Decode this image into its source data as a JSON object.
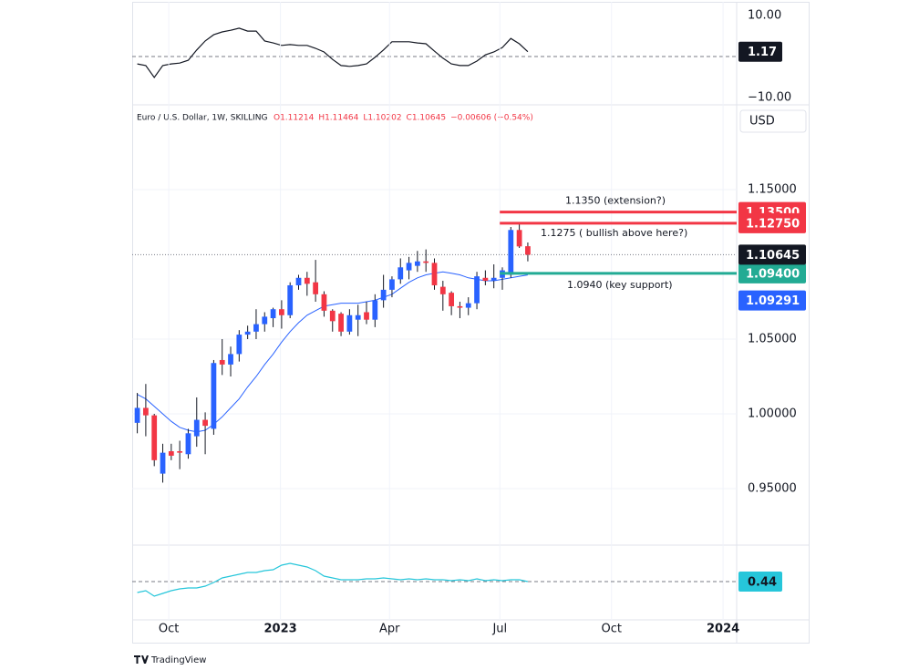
{
  "header": {
    "symbol": "Euro / U.S. Dollar, 1W, SKILLING",
    "ohlc": [
      "O1.11214",
      "H1.11464",
      "L1.10202",
      "C1.10645",
      "−0.00606 (−0.54%)"
    ],
    "currency": "USD"
  },
  "brand": "TradingView",
  "chart_data": [
    {
      "type": "line",
      "pane": "top",
      "color": "#131722",
      "values": [
        -1.8,
        -2.2,
        -5.1,
        -2.2,
        -1.8,
        -1.6,
        -0.9,
        1.6,
        3.8,
        5.3,
        6.0,
        6.4,
        6.9,
        6.2,
        6.2,
        3.8,
        3.3,
        2.7,
        2.9,
        2.7,
        2.7,
        2.0,
        1.1,
        -0.7,
        -2.2,
        -2.4,
        -2.2,
        -1.8,
        -0.2,
        1.6,
        3.6,
        3.6,
        3.6,
        3.3,
        3.1,
        1.3,
        -0.4,
        -1.8,
        -2.2,
        -2.2,
        -1.1,
        0.4,
        1.1,
        2.2,
        4.4,
        3.1,
        1.17
      ],
      "ylim": [
        -11.33,
        13.33
      ],
      "yticks": [
        {
          "value": 10,
          "label": "10.00"
        },
        {
          "value": -10,
          "label": "−10.00"
        }
      ],
      "reference": 0,
      "xlim": [
        -0.6,
        70.6
      ]
    },
    {
      "type": "candlestick",
      "pane": "main",
      "up_color": "#2962ff",
      "down_color": "#f23645",
      "categories": [
        null,
        null,
        null,
        null,
        null,
        null,
        null,
        null,
        null,
        null,
        null,
        null,
        null,
        null,
        null,
        null,
        null,
        null,
        null,
        null,
        null,
        null,
        null,
        null,
        null,
        null,
        null,
        null,
        null,
        null,
        null,
        null,
        null,
        null,
        null,
        null,
        null,
        null,
        null,
        null,
        null,
        null,
        null,
        null,
        null,
        null,
        null
      ],
      "open": [
        0.994,
        1.004,
        0.999,
        0.96,
        0.975,
        0.975,
        0.973,
        0.985,
        0.996,
        0.99,
        1.036,
        1.033,
        1.04,
        1.053,
        1.055,
        1.06,
        1.064,
        1.07,
        1.066,
        1.086,
        1.091,
        1.088,
        1.08,
        1.069,
        1.067,
        1.055,
        1.063,
        1.068,
        1.063,
        1.076,
        1.083,
        1.09,
        1.096,
        1.099,
        1.102,
        1.101,
        1.085,
        1.081,
        1.072,
        1.071,
        1.074,
        1.091,
        1.089,
        1.091,
        1.093,
        1.123,
        1.11214
      ],
      "high": [
        1.014,
        1.02,
        1.0,
        0.98,
        0.98,
        0.982,
        0.99,
        1.011,
        1.001,
        1.036,
        1.05,
        1.045,
        1.056,
        1.059,
        1.07,
        1.068,
        1.071,
        1.076,
        1.088,
        1.093,
        1.095,
        1.103,
        1.082,
        1.07,
        1.068,
        1.07,
        1.073,
        1.075,
        1.08,
        1.093,
        1.092,
        1.104,
        1.105,
        1.109,
        1.11,
        1.104,
        1.089,
        1.082,
        1.075,
        1.078,
        1.095,
        1.096,
        1.1,
        1.098,
        1.125,
        1.128,
        1.11464
      ],
      "low": [
        0.987,
        0.985,
        0.965,
        0.954,
        0.969,
        0.963,
        0.97,
        0.978,
        0.973,
        0.986,
        1.026,
        1.025,
        1.035,
        1.05,
        1.05,
        1.055,
        1.058,
        1.057,
        1.064,
        1.083,
        1.079,
        1.075,
        1.065,
        1.055,
        1.052,
        1.053,
        1.052,
        1.06,
        1.058,
        1.071,
        1.078,
        1.087,
        1.09,
        1.095,
        1.095,
        1.083,
        1.069,
        1.066,
        1.064,
        1.066,
        1.07,
        1.086,
        1.084,
        1.083,
        1.091,
        1.111,
        1.10202
      ],
      "close": [
        1.004,
        0.999,
        0.969,
        0.974,
        0.972,
        0.974,
        0.987,
        0.996,
        0.992,
        1.034,
        1.033,
        1.04,
        1.053,
        1.055,
        1.06,
        1.065,
        1.07,
        1.066,
        1.086,
        1.091,
        1.087,
        1.08,
        1.069,
        1.062,
        1.055,
        1.066,
        1.066,
        1.063,
        1.076,
        1.083,
        1.09,
        1.098,
        1.101,
        1.102,
        1.101,
        1.086,
        1.08,
        1.072,
        1.071,
        1.074,
        1.092,
        1.089,
        1.091,
        1.096,
        1.123,
        1.112,
        1.10645
      ],
      "last_value_label": "1.10645",
      "moving_average": {
        "color": "#2962ff",
        "value_label": "1.09291",
        "values": [
          1.013,
          1.01,
          1.005,
          1.0,
          0.995,
          0.991,
          0.989,
          0.988,
          0.989,
          0.993,
          0.998,
          1.004,
          1.01,
          1.018,
          1.025,
          1.033,
          1.04,
          1.048,
          1.055,
          1.061,
          1.066,
          1.069,
          1.072,
          1.073,
          1.074,
          1.074,
          1.074,
          1.075,
          1.076,
          1.078,
          1.08,
          1.084,
          1.088,
          1.091,
          1.093,
          1.094,
          1.095,
          1.094,
          1.093,
          1.091,
          1.09,
          1.089,
          1.089,
          1.09,
          1.091,
          1.092,
          1.09291
        ]
      },
      "levels": {
        "start": 42.7,
        "values": [
          1.135,
          1.1275,
          1.094
        ],
        "value_labels": [
          "1.13500",
          "1.12750",
          "1.09400"
        ],
        "texts": [
          "1.1350 (extension?)",
          "1.1275 ( bullish above here?)",
          "1.0940 (key support)"
        ],
        "colors": [
          "#f23645",
          "#f23645",
          "#22ab94"
        ]
      },
      "ylim": [
        0.9128,
        1.2055
      ],
      "yticks": [
        {
          "value": 1.15,
          "label": "1.15000"
        },
        {
          "value": 1.05,
          "label": "1.05000"
        },
        {
          "value": 1.0,
          "label": "1.00000"
        },
        {
          "value": 0.95,
          "label": "0.95000"
        }
      ],
      "xlim": [
        -0.6,
        70.6
      ],
      "xticks": [
        {
          "value": 3.71,
          "label": "Oct"
        },
        {
          "value": 16.86,
          "label": "2023"
        },
        {
          "value": 29.71,
          "label": "Apr"
        },
        {
          "value": 42.71,
          "label": "Jul"
        },
        {
          "value": 55.86,
          "label": "Oct"
        },
        {
          "value": 69,
          "label": "2024"
        }
      ]
    },
    {
      "type": "line",
      "pane": "bottom",
      "color": "#26c6da",
      "values": [
        0.32,
        0.34,
        0.28,
        0.31,
        0.34,
        0.36,
        0.37,
        0.37,
        0.39,
        0.43,
        0.48,
        0.5,
        0.52,
        0.54,
        0.54,
        0.56,
        0.57,
        0.62,
        0.64,
        0.62,
        0.6,
        0.56,
        0.5,
        0.48,
        0.46,
        0.46,
        0.46,
        0.47,
        0.47,
        0.48,
        0.47,
        0.46,
        0.47,
        0.46,
        0.47,
        0.46,
        0.46,
        0.45,
        0.46,
        0.45,
        0.47,
        0.45,
        0.46,
        0.45,
        0.46,
        0.46,
        0.44
      ],
      "ylim": [
        0.02,
        0.83
      ],
      "xlim": [
        -0.6,
        70.6
      ]
    }
  ]
}
